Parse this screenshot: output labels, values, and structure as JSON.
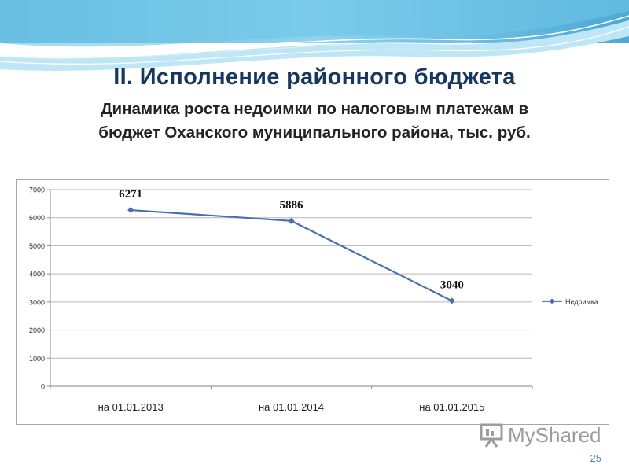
{
  "slide": {
    "title": "II. Исполнение районного бюджета",
    "subtitle_line1": "Динамика роста недоимки по налоговым платежам в",
    "subtitle_line2": "бюджет Оханского муниципального района, тыс. руб.",
    "page_number": "25",
    "watermark": "MyShared"
  },
  "chart_data": {
    "type": "line",
    "title": "",
    "xlabel": "",
    "ylabel": "",
    "categories": [
      "на 01.01.2013",
      "на 01.01.2014",
      "на 01.01.2015"
    ],
    "series": [
      {
        "name": "Недоимка",
        "values": [
          6271,
          5886,
          3040
        ],
        "color": "#4a6fb0"
      }
    ],
    "data_labels": [
      "6271",
      "5886",
      "3040"
    ],
    "ylim": [
      0,
      7000
    ],
    "yticks": [
      0,
      1000,
      2000,
      3000,
      4000,
      5000,
      6000,
      7000
    ],
    "grid": true,
    "legend_position": "right"
  }
}
